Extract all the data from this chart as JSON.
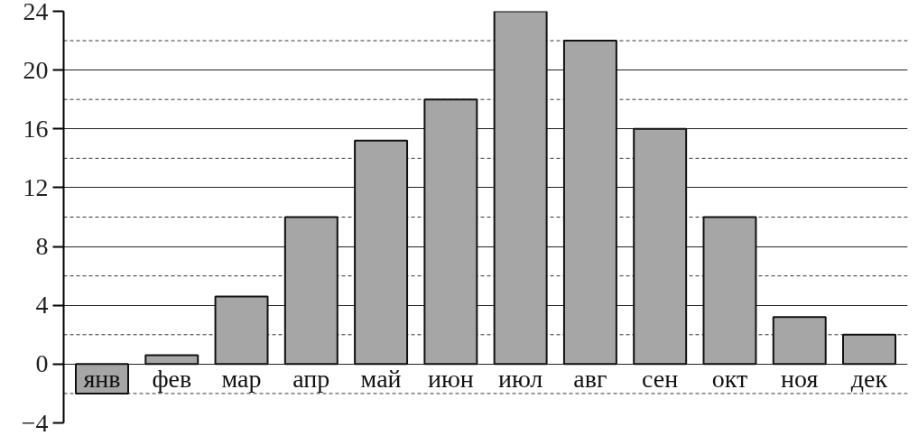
{
  "chart_data": {
    "type": "bar",
    "categories": [
      "янв",
      "фев",
      "мар",
      "апр",
      "май",
      "июн",
      "июл",
      "авг",
      "сен",
      "окт",
      "ноя",
      "дек"
    ],
    "values": [
      -2,
      0.6,
      4.6,
      10,
      15.2,
      18,
      24,
      22,
      16,
      10,
      3.2,
      2
    ],
    "color": "#a6a6a6",
    "ylim": [
      -4,
      24
    ],
    "yticks": [
      -4,
      {
        "value": -2,
        "label": null
      },
      0,
      {
        "value": 2,
        "label": null
      },
      4,
      {
        "value": 6,
        "label": null
      },
      8,
      {
        "value": 10,
        "label": null
      },
      12,
      {
        "value": 14,
        "label": null
      },
      16,
      {
        "value": 18,
        "label": null
      },
      20,
      {
        "value": 22,
        "label": null
      },
      24
    ],
    "grid": "y"
  }
}
